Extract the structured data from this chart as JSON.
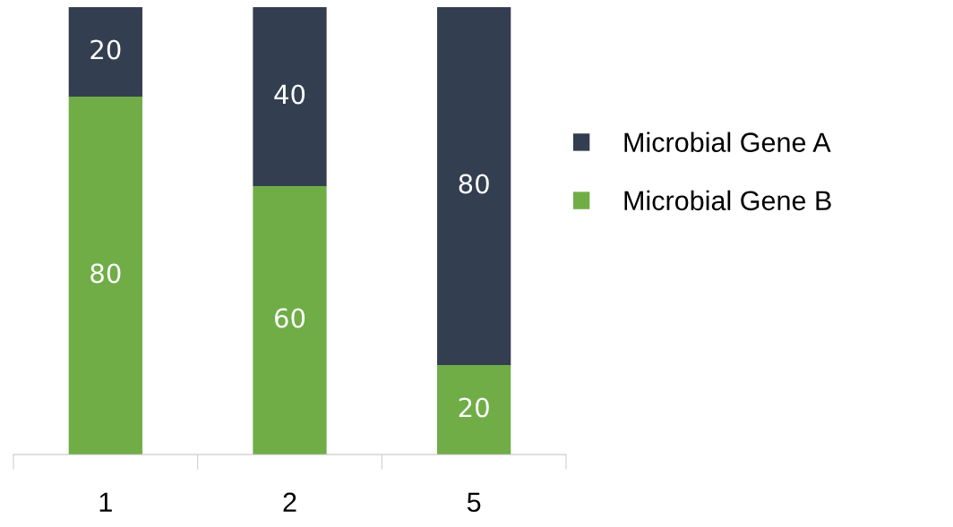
{
  "chart_data": {
    "type": "bar",
    "stacked": true,
    "categories": [
      "1",
      "2",
      "5"
    ],
    "series": [
      {
        "name": "Microbial Gene B",
        "color": "#70ad47",
        "values": [
          80,
          60,
          20
        ]
      },
      {
        "name": "Microbial Gene A",
        "color": "#333f50",
        "values": [
          20,
          40,
          80
        ]
      }
    ],
    "data_labels": true,
    "legend": "right",
    "grid": false
  }
}
